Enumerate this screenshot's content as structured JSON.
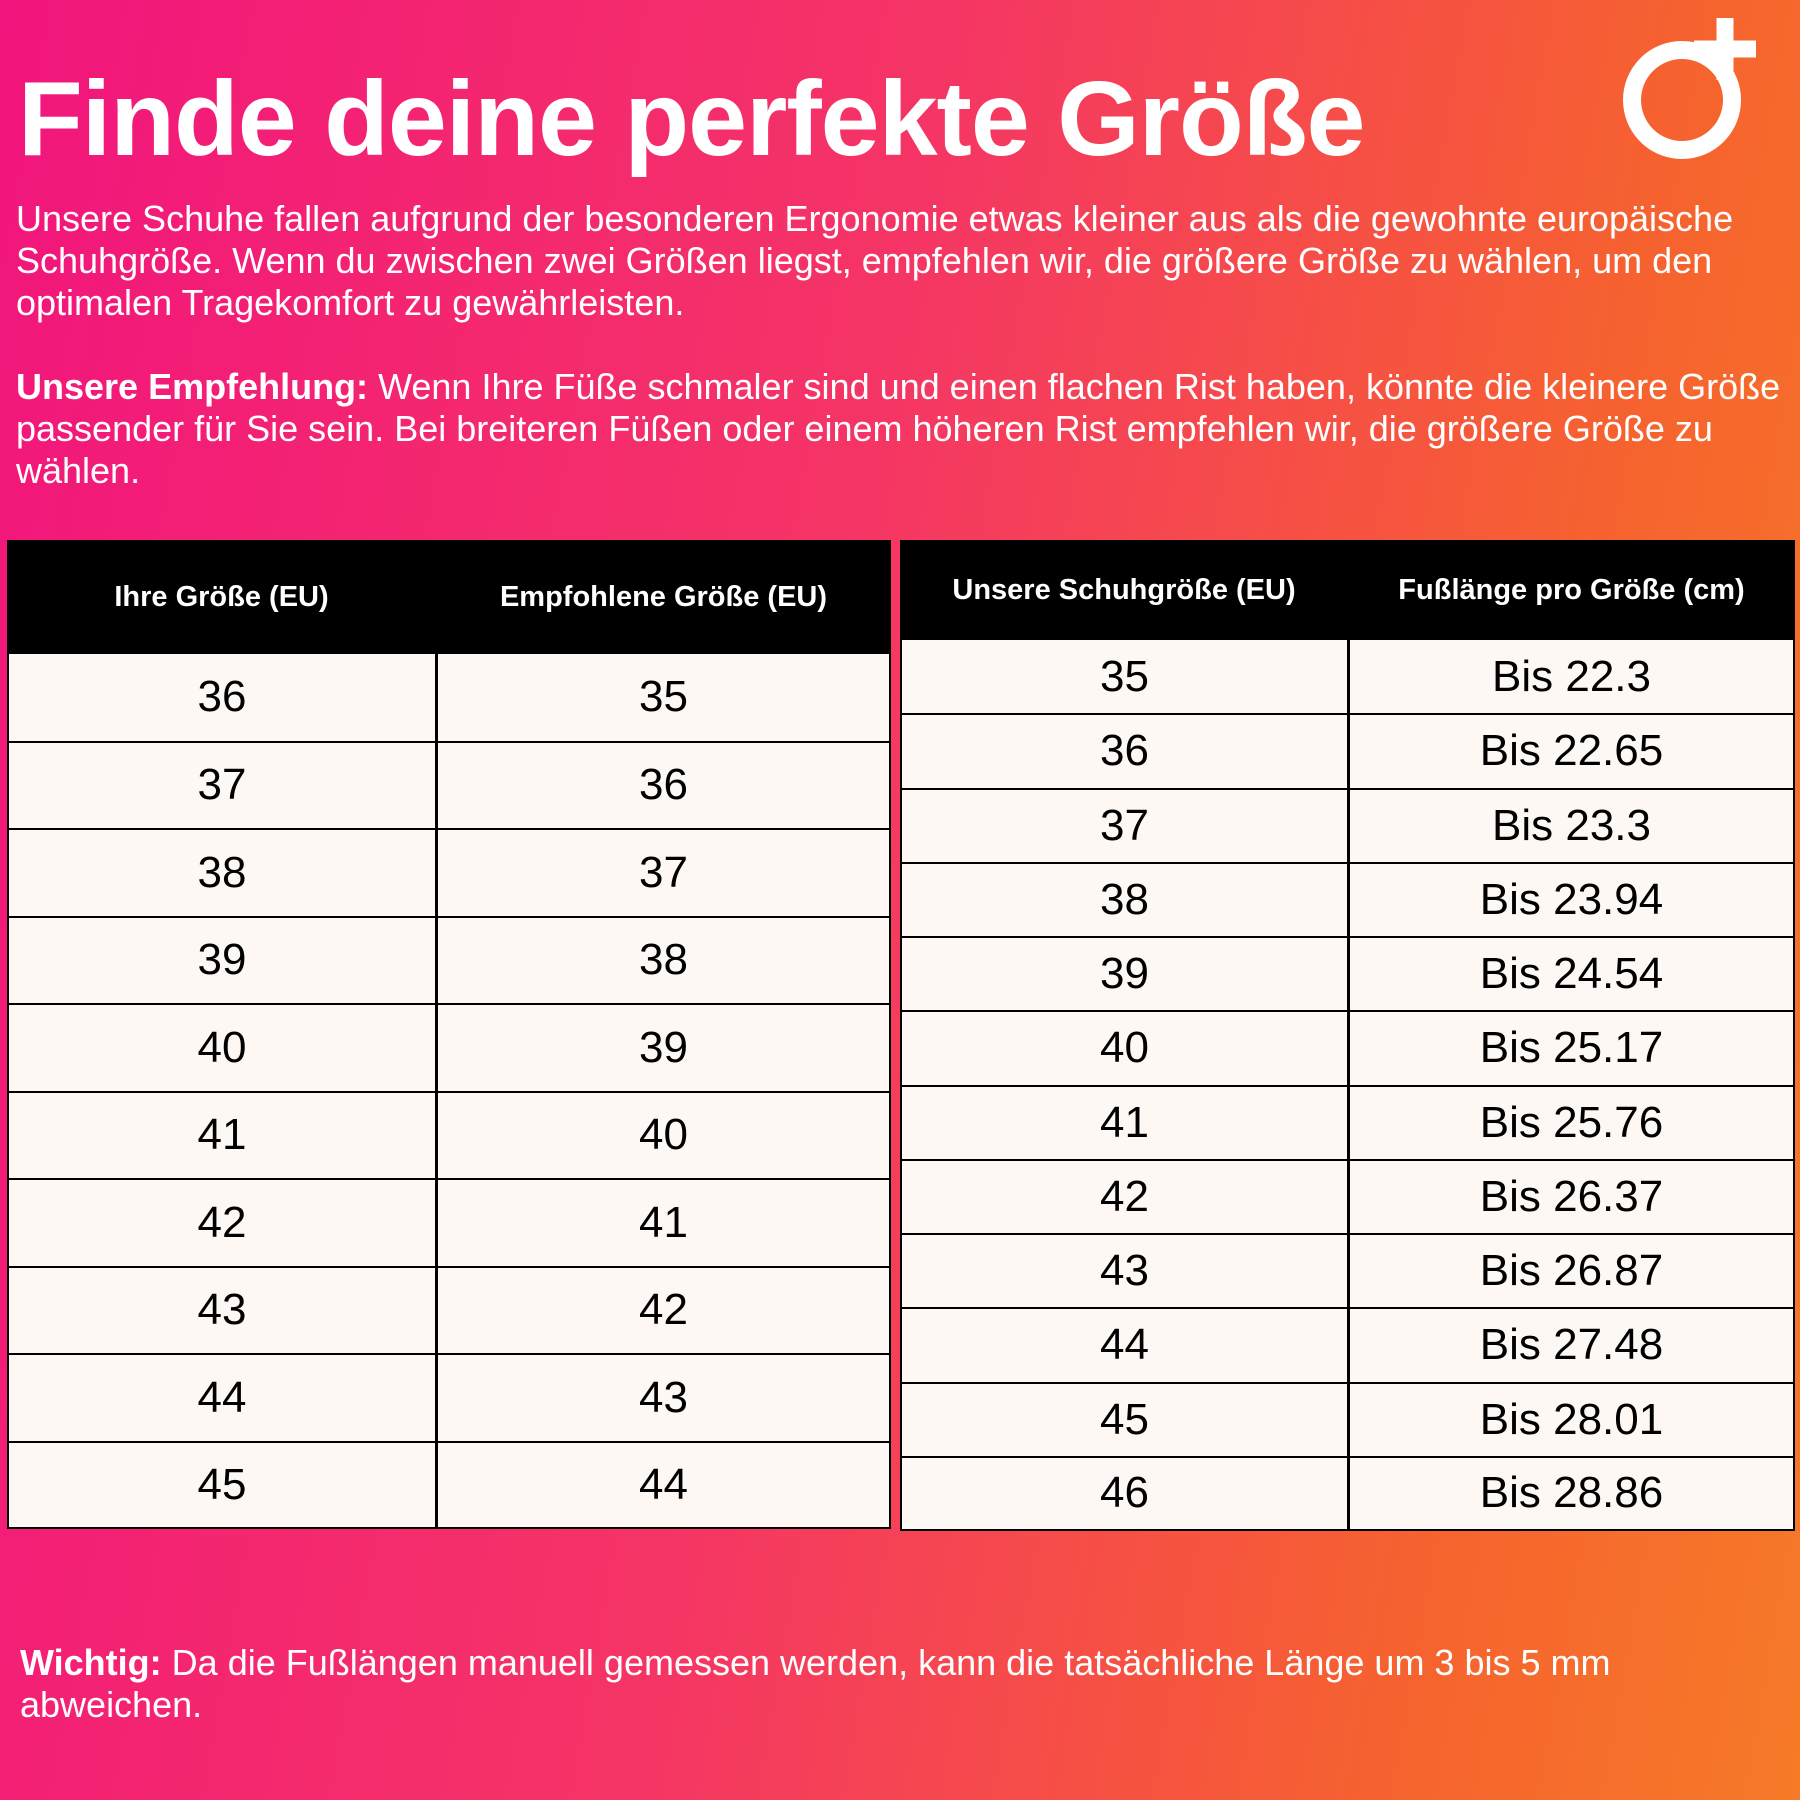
{
  "header": {
    "title": "Finde deine perfekte Größe"
  },
  "intro": "Unsere Schuhe fallen aufgrund der besonderen Ergonomie etwas kleiner aus als die gewohnte europäische Schuhgröße. Wenn du zwischen zwei Größen liegst, empfehlen wir, die größere Größe zu wählen, um den optimalen Tragekomfort zu gewährleisten.",
  "recommendation": {
    "label": "Unsere Empfehlung:",
    "text": "Wenn Ihre Füße schmaler sind und einen flachen Rist haben, könnte die kleinere Größe passender für Sie sein. Bei breiteren Füßen oder einem höheren Rist empfehlen wir, die größere Größe zu wählen."
  },
  "table_left": {
    "headers": [
      "Ihre Größe (EU)",
      "Empfohlene Größe (EU)"
    ],
    "rows": [
      [
        36,
        35
      ],
      [
        37,
        36
      ],
      [
        38,
        37
      ],
      [
        39,
        38
      ],
      [
        40,
        39
      ],
      [
        41,
        40
      ],
      [
        42,
        41
      ],
      [
        43,
        42
      ],
      [
        44,
        43
      ],
      [
        45,
        44
      ]
    ]
  },
  "table_right": {
    "headers": [
      "Unsere Schuhgröße (EU)",
      "Fußlänge pro Größe (cm)"
    ],
    "rows": [
      [
        35,
        "Bis 22.3"
      ],
      [
        36,
        "Bis 22.65"
      ],
      [
        37,
        "Bis 23.3"
      ],
      [
        38,
        "Bis 23.94"
      ],
      [
        39,
        "Bis 24.54"
      ],
      [
        40,
        "Bis 25.17"
      ],
      [
        41,
        "Bis 25.76"
      ],
      [
        42,
        "Bis 26.37"
      ],
      [
        43,
        "Bis 26.87"
      ],
      [
        44,
        "Bis 27.48"
      ],
      [
        45,
        "Bis 28.01"
      ],
      [
        46,
        "Bis 28.86"
      ]
    ]
  },
  "note": {
    "label": "Wichtig:",
    "text": "Da die Fußlängen manuell gemessen werden, kann die tatsächliche Länge um 3 bis 5 mm abweichen."
  }
}
